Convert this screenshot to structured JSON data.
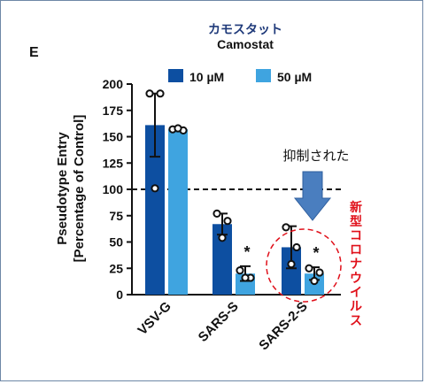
{
  "panel_label": "E",
  "drug_name_jp": "カモスタット",
  "drug_name_en": "Camostat",
  "annotations": {
    "suppressed": "抑制された",
    "new_coronavirus": "新型コロナウイルス",
    "significance_marker": "*"
  },
  "colors": {
    "series_10uM": "#0d4fa1",
    "series_50uM": "#3fa4e0",
    "arrow": "#4a7ebf",
    "highlight": "#e0101a",
    "jp_title": "#1f3a7a"
  },
  "chart_data": {
    "type": "bar",
    "title": "",
    "ylabel_line1": "Pseudotype Entry",
    "ylabel_line2": "[Percentage of Control]",
    "xlabel": "",
    "categories": [
      "VSV-G",
      "SARS-S",
      "SARS-2-S"
    ],
    "ylim": [
      0,
      200
    ],
    "yticks": [
      0,
      25,
      50,
      75,
      100,
      125,
      150,
      175,
      200
    ],
    "reference_line": 100,
    "legend_position": "top",
    "series": [
      {
        "name": "10 µM",
        "values": [
          161,
          67,
          45
        ],
        "error": [
          30,
          10,
          20
        ],
        "points": [
          [
            191,
            191,
            101
          ],
          [
            77,
            70,
            54
          ],
          [
            64,
            45,
            29
          ]
        ],
        "significant": [
          false,
          false,
          false
        ]
      },
      {
        "name": "50 µM",
        "values": [
          157,
          20,
          20
        ],
        "error": [
          0,
          7,
          6
        ],
        "points": [
          [
            157,
            156,
            158
          ],
          [
            23,
            16,
            16
          ],
          [
            25,
            21,
            13
          ]
        ],
        "significant": [
          false,
          true,
          true
        ]
      }
    ]
  }
}
